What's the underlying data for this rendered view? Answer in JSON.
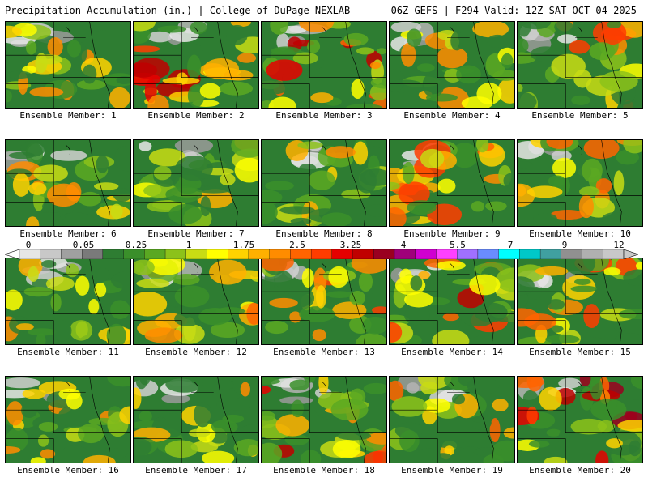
{
  "header": {
    "left_title": "Precipitation Accumulation (in.) | College of DuPage NEXLAB",
    "right_title": "06Z GEFS | F294 Valid: 12Z SAT OCT 04 2025"
  },
  "panels": [
    {
      "label": "Ensemble Member: 1",
      "intensity": 0.45
    },
    {
      "label": "Ensemble Member: 2",
      "intensity": 0.85
    },
    {
      "label": "Ensemble Member: 3",
      "intensity": 0.75
    },
    {
      "label": "Ensemble Member: 4",
      "intensity": 0.45
    },
    {
      "label": "Ensemble Member: 5",
      "intensity": 0.6
    },
    {
      "label": "Ensemble Member: 6",
      "intensity": 0.5
    },
    {
      "label": "Ensemble Member: 7",
      "intensity": 0.45
    },
    {
      "label": "Ensemble Member: 8",
      "intensity": 0.45
    },
    {
      "label": "Ensemble Member: 9",
      "intensity": 0.6
    },
    {
      "label": "Ensemble Member: 10",
      "intensity": 0.55
    },
    {
      "label": "Ensemble Member: 11",
      "intensity": 0.45
    },
    {
      "label": "Ensemble Member: 12",
      "intensity": 0.5
    },
    {
      "label": "Ensemble Member: 13",
      "intensity": 0.6
    },
    {
      "label": "Ensemble Member: 14",
      "intensity": 0.8
    },
    {
      "label": "Ensemble Member: 15",
      "intensity": 0.6
    },
    {
      "label": "Ensemble Member: 16",
      "intensity": 0.5
    },
    {
      "label": "Ensemble Member: 17",
      "intensity": 0.45
    },
    {
      "label": "Ensemble Member: 18",
      "intensity": 0.75
    },
    {
      "label": "Ensemble Member: 19",
      "intensity": 0.5
    },
    {
      "label": "Ensemble Member: 20",
      "intensity": 0.85
    }
  ],
  "colorbar": {
    "labels": [
      "0",
      "0.05",
      "0.25",
      "1",
      "1.75",
      "2.5",
      "3.25",
      "4",
      "5.5",
      "7",
      "9",
      "12"
    ],
    "colors": [
      "#e6e6e6",
      "#c8c8c8",
      "#a0a0a0",
      "#7a7a7a",
      "#2e7d32",
      "#3a8f2a",
      "#5aa822",
      "#8cc21a",
      "#c8dc14",
      "#ffff00",
      "#ffd200",
      "#ffb000",
      "#ff8c00",
      "#ff6400",
      "#ff3c00",
      "#e60000",
      "#c00000",
      "#9a0020",
      "#a0007a",
      "#d000d0",
      "#ff40ff",
      "#a070ff",
      "#6a8cff",
      "#00ffff",
      "#00c8c8",
      "#40a0a0",
      "#909090",
      "#b0b0b0",
      "#c8c8c8"
    ]
  }
}
